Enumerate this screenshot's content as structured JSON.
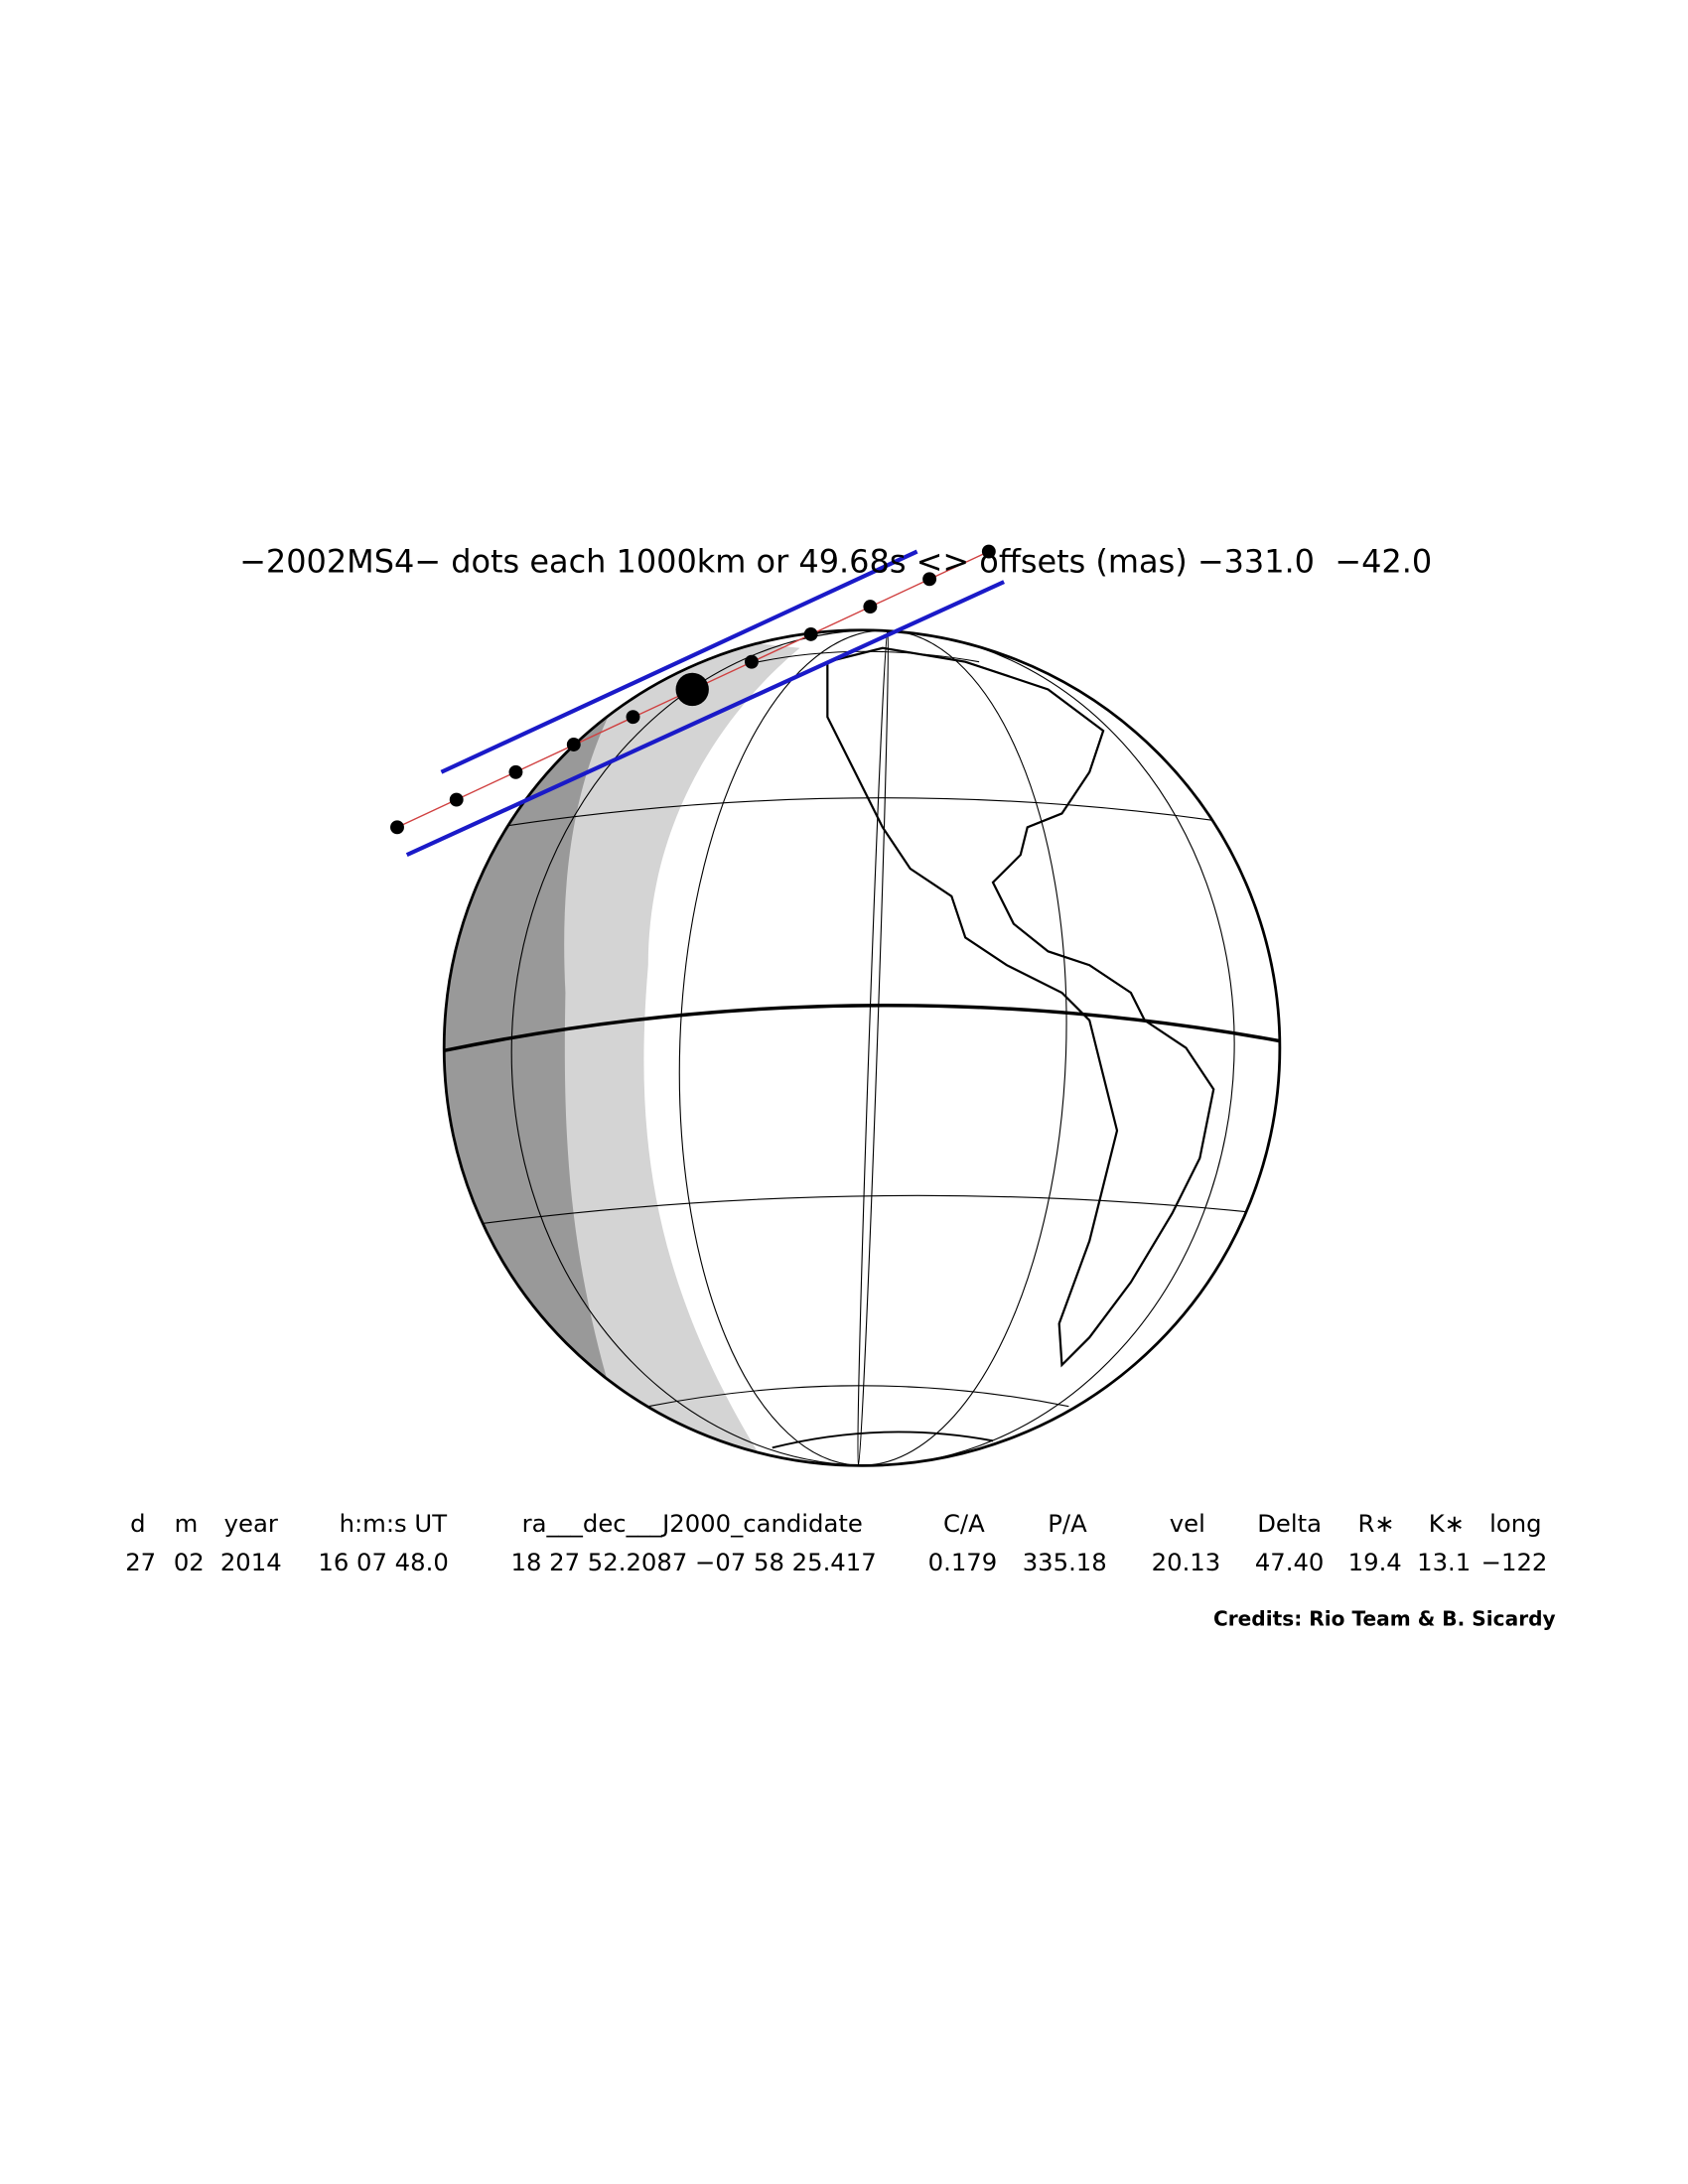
{
  "title": "−2002MS4− dots each 1000km or 49.68s <> offsets (mas) −331.0  −42.0",
  "table": {
    "headers": [
      "d",
      "m",
      "year",
      "h:m:s UT",
      "ra___dec___J2000_candidate",
      "C/A",
      "P/A",
      "vel",
      "Delta",
      "R∗",
      "K∗",
      "long"
    ],
    "values": [
      "27",
      "02",
      "2014",
      "16 07 48.0",
      "18 27 52.2087 −07 58 25.417",
      "0.179",
      "335.18",
      "20.13",
      "47.40",
      "19.4",
      "13.1",
      "−122"
    ]
  },
  "credits": "Credits: Rio Team & B. Sicardy"
}
